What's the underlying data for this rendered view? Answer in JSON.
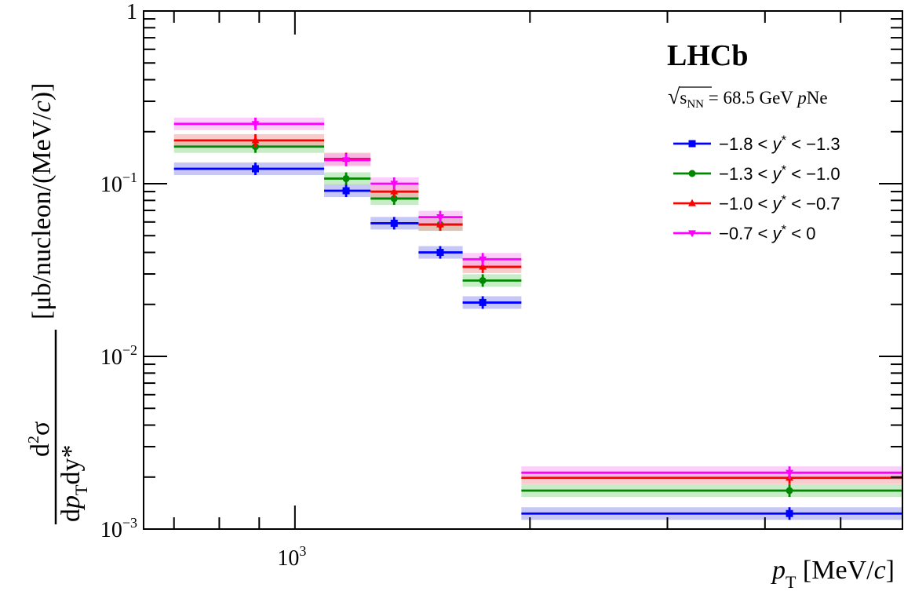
{
  "chart_data": {
    "type": "scatter",
    "experiment": "LHCb",
    "info_text": {
      "sqrt": "√",
      "s": "s",
      "nn": "NN",
      "rest": " = 68.5 GeV ",
      "p": "p",
      "system": "Ne"
    },
    "xaxis": {
      "title_main": "p",
      "title_sub": "T",
      "title_unit": " [MeV/",
      "title_c": "c",
      "title_close": "]",
      "scale": "log",
      "range": [
        640,
        6000
      ],
      "tick_labels": [
        {
          "value": 1000,
          "base": "10",
          "exp": "3"
        }
      ]
    },
    "yaxis": {
      "title_unit": "[μb/nucleon/(MeV/",
      "title_c": "c",
      "title_close": ")]",
      "num_d": "d",
      "num_2": "2",
      "num_sigma": "σ",
      "den_d": "d",
      "den_p": "p",
      "den_T": "T",
      "den_dy": "dy*",
      "scale": "log",
      "range": [
        0.001,
        1
      ],
      "tick_labels": [
        {
          "value": 1,
          "base": "1",
          "exp": ""
        },
        {
          "value": 0.1,
          "base": "10",
          "exp": "−1"
        },
        {
          "value": 0.01,
          "base": "10",
          "exp": "−2"
        },
        {
          "value": 0.001,
          "base": "10",
          "exp": "−3"
        }
      ]
    },
    "legend_position": "top-right",
    "series": [
      {
        "name": "−1.8 < y* < −1.3",
        "label_prefix": "−1.8 < ",
        "label_var": "y",
        "label_star": "*",
        "label_suffix": " < −1.3",
        "color": "#0000ff",
        "band_color": "#9999ee",
        "marker": "square",
        "points": [
          {
            "x": 890,
            "xlo": 700,
            "xhi": 1090,
            "y": 0.122
          },
          {
            "x": 1163,
            "xlo": 1090,
            "xhi": 1250,
            "y": 0.091
          },
          {
            "x": 1340,
            "xlo": 1250,
            "xhi": 1440,
            "y": 0.059
          },
          {
            "x": 1535,
            "xlo": 1440,
            "xhi": 1640,
            "y": 0.04
          },
          {
            "x": 1740,
            "xlo": 1640,
            "xhi": 1950,
            "y": 0.0205
          },
          {
            "x": 4300,
            "xlo": 1950,
            "xhi": 6000,
            "y": 0.00123
          }
        ]
      },
      {
        "name": "−1.3 < y* < −1.0",
        "label_prefix": "−1.3 < ",
        "label_var": "y",
        "label_star": "*",
        "label_suffix": " < −1.0",
        "color": "#008800",
        "band_color": "#99dd99",
        "marker": "circle",
        "points": [
          {
            "x": 890,
            "xlo": 700,
            "xhi": 1090,
            "y": 0.164
          },
          {
            "x": 1163,
            "xlo": 1090,
            "xhi": 1250,
            "y": 0.107
          },
          {
            "x": 1340,
            "xlo": 1250,
            "xhi": 1440,
            "y": 0.082
          },
          {
            "x": 1535,
            "xlo": 1440,
            "xhi": 1640,
            "y": 0.058
          },
          {
            "x": 1740,
            "xlo": 1640,
            "xhi": 1950,
            "y": 0.0275
          },
          {
            "x": 4300,
            "xlo": 1950,
            "xhi": 6000,
            "y": 0.00167
          }
        ]
      },
      {
        "name": "−1.0 < y* < −0.7",
        "label_prefix": "−1.0 < ",
        "label_var": "y",
        "label_star": "*",
        "label_suffix": " < −0.7",
        "color": "#ff0000",
        "band_color": "#f4a0a0",
        "marker": "triangle-up",
        "points": [
          {
            "x": 890,
            "xlo": 700,
            "xhi": 1090,
            "y": 0.178
          },
          {
            "x": 1163,
            "xlo": 1090,
            "xhi": 1250,
            "y": 0.139
          },
          {
            "x": 1340,
            "xlo": 1250,
            "xhi": 1440,
            "y": 0.09
          },
          {
            "x": 1535,
            "xlo": 1440,
            "xhi": 1640,
            "y": 0.058
          },
          {
            "x": 1740,
            "xlo": 1640,
            "xhi": 1950,
            "y": 0.033
          },
          {
            "x": 4300,
            "xlo": 1950,
            "xhi": 6000,
            "y": 0.00198
          }
        ]
      },
      {
        "name": "−0.7 < y* < 0",
        "label_prefix": "−0.7 < ",
        "label_var": "y",
        "label_star": "*",
        "label_suffix": " < 0",
        "color": "#ff00ff",
        "band_color": "#f5a8f5",
        "marker": "triangle-down",
        "points": [
          {
            "x": 890,
            "xlo": 700,
            "xhi": 1090,
            "y": 0.222
          },
          {
            "x": 1163,
            "xlo": 1090,
            "xhi": 1250,
            "y": 0.137
          },
          {
            "x": 1340,
            "xlo": 1250,
            "xhi": 1440,
            "y": 0.1
          },
          {
            "x": 1535,
            "xlo": 1440,
            "xhi": 1640,
            "y": 0.064
          },
          {
            "x": 1740,
            "xlo": 1640,
            "xhi": 1950,
            "y": 0.0365
          },
          {
            "x": 4300,
            "xlo": 1950,
            "xhi": 6000,
            "y": 0.00212
          }
        ]
      }
    ]
  }
}
